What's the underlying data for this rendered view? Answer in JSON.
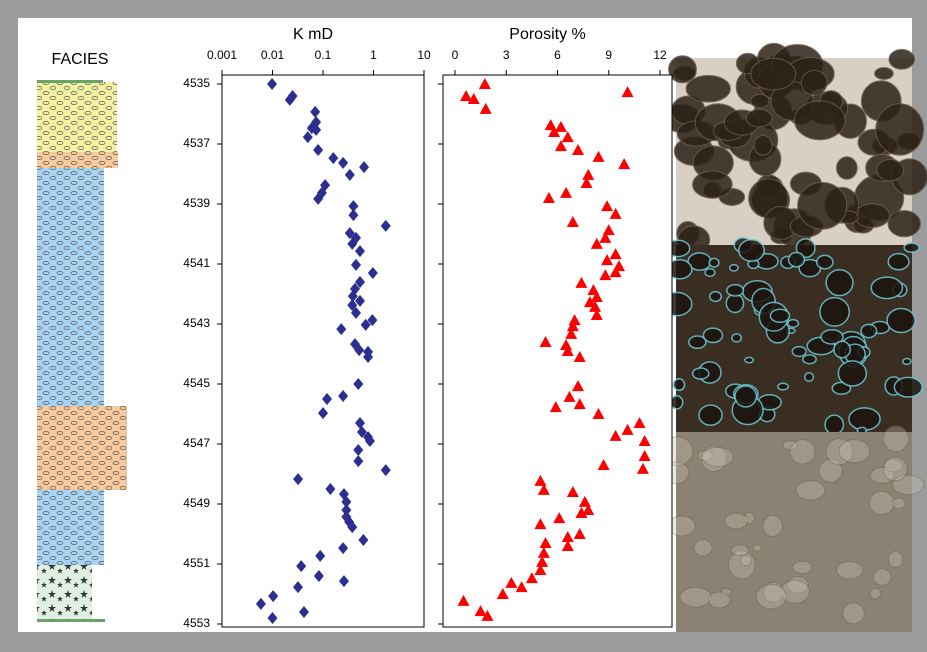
{
  "facies_title": "FACIES",
  "chart_data": [
    {
      "type": "scatter",
      "title": "K mD",
      "xscale": "log",
      "marker": "diamond",
      "color": "#2b2f8f",
      "xlim": [
        0.001,
        10
      ],
      "xticks": [
        0.001,
        0.01,
        0.1,
        1,
        10
      ],
      "ylim": [
        4534.7,
        4553.1
      ],
      "yticks": [
        4535,
        4537,
        4539,
        4541,
        4543,
        4545,
        4547,
        4549,
        4551,
        4553
      ],
      "yreversed": true,
      "x": [
        0.0098,
        0.025,
        0.022,
        0.07,
        0.073,
        0.06,
        0.073,
        0.05,
        0.08,
        0.16,
        0.25,
        0.65,
        0.34,
        0.11,
        0.095,
        0.08,
        0.4,
        0.4,
        1.75,
        0.34,
        0.45,
        0.38,
        0.54,
        0.45,
        0.97,
        0.54,
        0.43,
        0.39,
        0.54,
        0.38,
        0.45,
        0.95,
        0.7,
        0.23,
        0.43,
        0.52,
        0.78,
        0.78,
        0.5,
        0.25,
        0.12,
        0.1,
        0.54,
        0.59,
        0.78,
        0.85,
        0.5,
        0.5,
        1.75,
        0.032,
        0.14,
        0.26,
        0.29,
        0.29,
        0.29,
        0.33,
        0.38,
        0.63,
        0.25,
        0.088,
        0.037,
        0.083,
        0.26,
        0.032,
        0.0103,
        0.0059,
        0.042,
        0.01
      ],
      "y": [
        4535.0,
        4535.4,
        4535.53,
        4535.93,
        4536.27,
        4536.47,
        4536.53,
        4536.77,
        4537.2,
        4537.47,
        4537.63,
        4537.77,
        4538.03,
        4538.37,
        4538.63,
        4538.83,
        4539.07,
        4539.37,
        4539.73,
        4539.97,
        4540.13,
        4540.33,
        4540.57,
        4541.03,
        4541.3,
        4541.6,
        4541.83,
        4542.07,
        4542.23,
        4542.37,
        4542.63,
        4542.87,
        4543.03,
        4543.17,
        4543.67,
        4543.87,
        4543.93,
        4544.1,
        4545.0,
        4545.4,
        4545.5,
        4545.97,
        4546.3,
        4546.6,
        4546.77,
        4546.9,
        4547.2,
        4547.57,
        4547.87,
        4548.17,
        4548.5,
        4548.67,
        4548.93,
        4549.2,
        4549.43,
        4549.6,
        4549.77,
        4550.2,
        4550.47,
        4550.73,
        4551.07,
        4551.4,
        4551.57,
        4551.77,
        4552.07,
        4552.33,
        4552.6,
        4552.8
      ]
    },
    {
      "type": "scatter",
      "title": "Porosity %",
      "marker": "triangle",
      "color": "#ff0000",
      "xlim": [
        -0.7,
        12.7
      ],
      "xticks": [
        0,
        3,
        6,
        9,
        12
      ],
      "ylim": [
        4534.7,
        4553.1
      ],
      "yreversed": true,
      "x": [
        1.75,
        10.1,
        0.65,
        1.1,
        1.8,
        5.6,
        6.2,
        5.8,
        6.6,
        6.2,
        7.2,
        8.4,
        9.9,
        7.8,
        7.7,
        6.5,
        5.5,
        8.9,
        9.4,
        6.9,
        9.0,
        8.8,
        8.3,
        9.4,
        8.9,
        9.6,
        9.4,
        8.8,
        7.4,
        8.1,
        8.3,
        7.9,
        8.2,
        8.3,
        7.0,
        6.9,
        6.8,
        6.5,
        5.3,
        6.6,
        7.3,
        7.2,
        6.7,
        7.3,
        5.9,
        8.4,
        10.8,
        10.1,
        9.4,
        11.1,
        11.1,
        11.0,
        8.7,
        5.0,
        5.2,
        6.9,
        7.6,
        7.8,
        7.4,
        6.1,
        5.0,
        6.6,
        7.3,
        6.6,
        5.3,
        5.2,
        5.1,
        5.0,
        4.5,
        3.3,
        3.9,
        2.8,
        0.5,
        1.5,
        1.9
      ],
      "y": [
        4535.0,
        4535.27,
        4535.4,
        4535.5,
        4535.83,
        4536.37,
        4536.43,
        4536.6,
        4536.77,
        4537.07,
        4537.2,
        4537.43,
        4537.67,
        4538.03,
        4538.3,
        4538.63,
        4538.8,
        4539.07,
        4539.33,
        4539.6,
        4539.87,
        4540.13,
        4540.33,
        4540.67,
        4540.87,
        4541.07,
        4541.27,
        4541.37,
        4541.63,
        4541.87,
        4542.1,
        4542.27,
        4542.43,
        4542.7,
        4542.87,
        4543.07,
        4543.33,
        4543.7,
        4543.6,
        4543.9,
        4544.1,
        4545.07,
        4545.43,
        4545.67,
        4545.77,
        4546.0,
        4546.3,
        4546.53,
        4546.73,
        4546.9,
        4547.4,
        4547.83,
        4547.7,
        4548.23,
        4548.53,
        4548.6,
        4548.93,
        4549.2,
        4549.3,
        4549.47,
        4549.67,
        4550.1,
        4550.0,
        4550.4,
        4550.3,
        4550.63,
        4550.93,
        4551.2,
        4551.47,
        4551.63,
        4551.77,
        4552.0,
        4552.23,
        4552.57,
        4552.73
      ]
    }
  ]
}
